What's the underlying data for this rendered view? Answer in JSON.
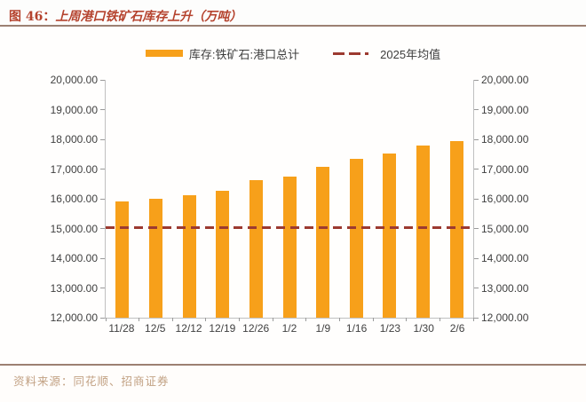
{
  "header": {
    "figure_label": "图 46：",
    "title": "上周港口铁矿石库存上升（万吨）"
  },
  "legend": {
    "bar_label": "库存:铁矿石:港口总计",
    "mean_label": "2025年均值"
  },
  "footer": {
    "source_label": "资料来源：",
    "source_text": "同花顺、招商证券"
  },
  "colors": {
    "bar": "#F7A01A",
    "mean_line": "#9C3A30",
    "title_text": "#B5432E",
    "rule": "#9C8072",
    "source_text": "#C2A183",
    "axis_text": "#3F3F3F",
    "axis_line": "#C0C0C0"
  },
  "chart_data": {
    "type": "bar",
    "title": "上周港口铁矿石库存上升（万吨）",
    "unit": "万吨",
    "categories": [
      "11/28",
      "12/5",
      "12/12",
      "12/19",
      "12/26",
      "1/2",
      "1/9",
      "1/16",
      "1/23",
      "1/30",
      "2/6"
    ],
    "series": [
      {
        "name": "库存:铁矿石:港口总计",
        "type": "bar",
        "values": [
          15910,
          16010,
          16130,
          16260,
          16620,
          16740,
          17080,
          17330,
          17520,
          17790,
          17930
        ]
      },
      {
        "name": "2025年均值",
        "type": "dashed-hline",
        "value": 15040
      }
    ],
    "ylim": [
      12000,
      20000
    ],
    "ytick_step": 1000,
    "yticklabels": [
      "20,000.00",
      "19,000.00",
      "18,000.00",
      "17,000.00",
      "16,000.00",
      "15,000.00",
      "14,000.00",
      "13,000.00",
      "12,000.00"
    ],
    "dual_axis": true,
    "grid": false,
    "legend_position": "top"
  }
}
